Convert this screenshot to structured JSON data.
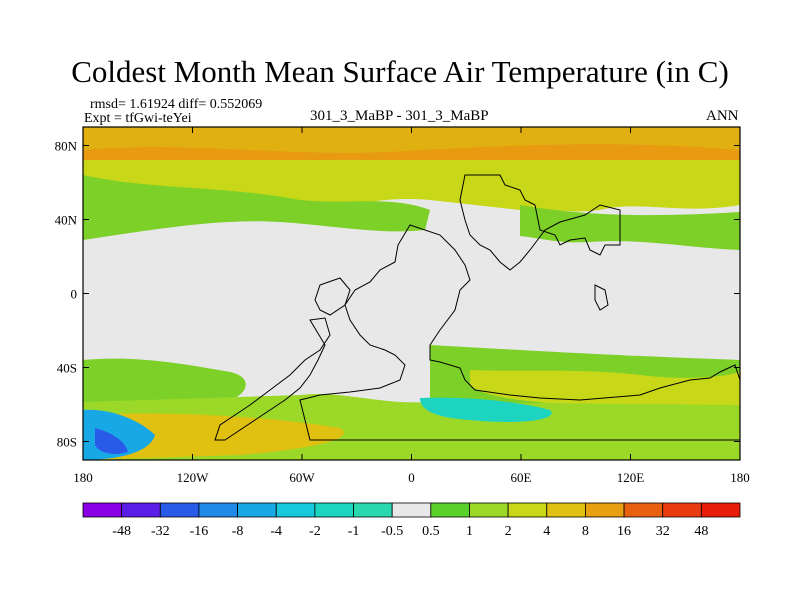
{
  "chart_data": {
    "type": "heatmap",
    "title": "Coldest Month Mean Surface Air Temperature (in C)",
    "left_stats_line1": "rmsd= 1.61924  diff= 0.552069",
    "left_stats_line2": "Expt = tfGwi-teYei",
    "center_label": "301_3_MaBP - 301_3_MaBP",
    "right_label": "ANN",
    "x_ticks": [
      "180",
      "120W",
      "60W",
      "0",
      "60E",
      "120E",
      "180"
    ],
    "x_tick_values": [
      -180,
      -120,
      -60,
      0,
      60,
      120,
      180
    ],
    "y_ticks": [
      "80N",
      "40N",
      "0",
      "40S",
      "80S"
    ],
    "y_tick_values": [
      80,
      40,
      0,
      -40,
      -80
    ],
    "xlim": [
      -180,
      180
    ],
    "ylim": [
      -90,
      90
    ],
    "colorbar": {
      "labels": [
        "-48",
        "-32",
        "-16",
        "-8",
        "-4",
        "-2",
        "-1",
        "-0.5",
        "0.5",
        "1",
        "2",
        "4",
        "8",
        "16",
        "32",
        "48"
      ],
      "colors": [
        "#8a00e6",
        "#5a1ee6",
        "#2a5ae8",
        "#1f8ae8",
        "#18a8e6",
        "#18c8dc",
        "#1cd4c0",
        "#2ad8b0",
        "#e8e8e8",
        "#5ad02a",
        "#9cd828",
        "#c8d818",
        "#e0c010",
        "#e8a010",
        "#e86010",
        "#e83c10",
        "#e81e0a"
      ]
    }
  }
}
